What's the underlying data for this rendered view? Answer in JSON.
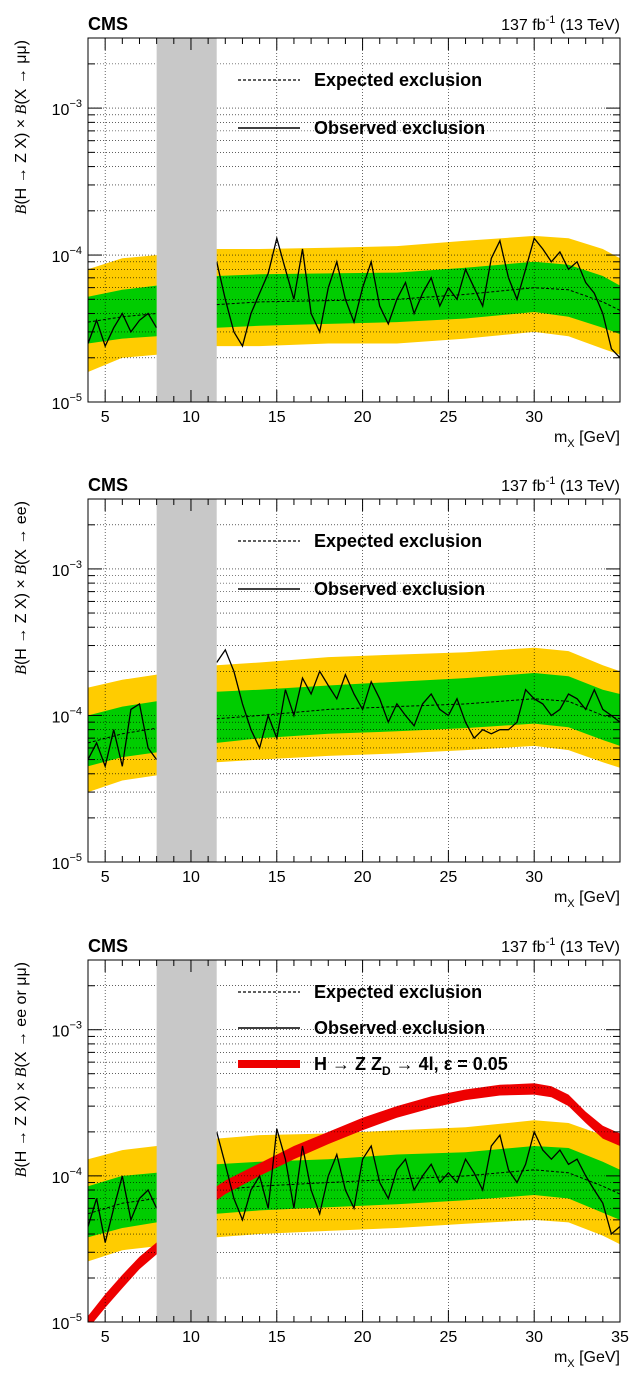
{
  "chart_data": [
    {
      "type": "line",
      "header": {
        "experiment": "CMS",
        "lumi": "137",
        "lumi_unit": "fb",
        "lumi_exp": "-1",
        "energy": "(13 TeV)"
      },
      "xlabel": {
        "main": "m",
        "sub": "X",
        "unit": "[GeV]"
      },
      "ylabel": {
        "p1": "B",
        "p2": "(H → Z X) × ",
        "p3": "B",
        "p4": "(X → μμ)"
      },
      "xlim": [
        4,
        35
      ],
      "ylim": [
        1e-05,
        0.003
      ],
      "log_y": true,
      "grid": true,
      "excluded_region_x": [
        8,
        11.5
      ],
      "xticks": [
        5,
        10,
        15,
        20,
        25,
        30
      ],
      "yticks": [
        {
          "value": 1e-05,
          "base": "10",
          "exp": "−5"
        },
        {
          "value": 0.0001,
          "base": "10",
          "exp": "−4"
        },
        {
          "value": 0.001,
          "base": "10",
          "exp": "−3"
        }
      ],
      "legend": {
        "position": "top-right",
        "entries": [
          "Expected exclusion",
          "Observed exclusion"
        ]
      },
      "expected": {
        "x": [
          4,
          6,
          8,
          11.5,
          14,
          18,
          22,
          26,
          30,
          32,
          34,
          35
        ],
        "y": [
          3.5e-05,
          3.8e-05,
          4e-05,
          4.6e-05,
          4.8e-05,
          4.9e-05,
          5e-05,
          5.4e-05,
          6e-05,
          5.8e-05,
          4.8e-05,
          4.2e-05
        ]
      },
      "band_1sigma": {
        "x": [
          4,
          6,
          8,
          11.5,
          14,
          18,
          22,
          26,
          30,
          32,
          34,
          35
        ],
        "low": [
          2.5e-05,
          2.7e-05,
          2.8e-05,
          3.2e-05,
          3.3e-05,
          3.4e-05,
          3.5e-05,
          3.7e-05,
          4.1e-05,
          3.8e-05,
          3.2e-05,
          2.9e-05
        ],
        "high": [
          5.2e-05,
          5.8e-05,
          6.2e-05,
          7.2e-05,
          7.4e-05,
          7.5e-05,
          7.6e-05,
          8.2e-05,
          9e-05,
          8.6e-05,
          7.2e-05,
          6.2e-05
        ]
      },
      "band_2sigma": {
        "x": [
          4,
          6,
          8,
          11.5,
          14,
          18,
          22,
          26,
          30,
          32,
          34,
          35
        ],
        "low": [
          1.6e-05,
          2e-05,
          2.1e-05,
          2.4e-05,
          2.4e-05,
          2.5e-05,
          2.5e-05,
          2.7e-05,
          3e-05,
          2.8e-05,
          2.3e-05,
          2.1e-05
        ],
        "high": [
          8e-05,
          9.5e-05,
          0.0001,
          0.00011,
          0.00011,
          0.000112,
          0.000115,
          0.000125,
          0.000135,
          0.00013,
          0.00011,
          9.5e-05
        ]
      },
      "observed": {
        "x": [
          4,
          4.5,
          5,
          5.5,
          6,
          6.5,
          7,
          7.5,
          8,
          11.5,
          12,
          12.5,
          13,
          13.5,
          14,
          14.5,
          15,
          15.5,
          16,
          16.5,
          17,
          17.5,
          18,
          18.5,
          19,
          19.5,
          20,
          20.5,
          21,
          21.5,
          22,
          22.5,
          23,
          23.5,
          24,
          24.5,
          25,
          25.5,
          26,
          26.5,
          27,
          27.5,
          28,
          28.5,
          29,
          29.5,
          30,
          30.5,
          31,
          31.5,
          32,
          32.5,
          33,
          33.5,
          34,
          34.5,
          35
        ],
        "y": [
          2.5e-05,
          3.6e-05,
          2.4e-05,
          3.2e-05,
          4e-05,
          3e-05,
          3.6e-05,
          4e-05,
          3.2e-05,
          9e-05,
          5e-05,
          3e-05,
          2.4e-05,
          4e-05,
          5.5e-05,
          7.5e-05,
          0.00013,
          8e-05,
          5e-05,
          0.00011,
          4e-05,
          3e-05,
          6e-05,
          9e-05,
          5e-05,
          3.5e-05,
          6e-05,
          9e-05,
          4.5e-05,
          3.4e-05,
          5e-05,
          6.5e-05,
          4e-05,
          5.5e-05,
          7e-05,
          4.5e-05,
          6e-05,
          5e-05,
          8e-05,
          6e-05,
          4.5e-05,
          9.5e-05,
          0.000125,
          7e-05,
          5e-05,
          8e-05,
          0.00013,
          0.00011,
          9e-05,
          0.000105,
          8e-05,
          9e-05,
          6.5e-05,
          5.5e-05,
          4e-05,
          2.3e-05,
          2e-05
        ]
      }
    },
    {
      "type": "line",
      "header": {
        "experiment": "CMS",
        "lumi": "137",
        "lumi_unit": "fb",
        "lumi_exp": "-1",
        "energy": "(13 TeV)"
      },
      "xlabel": {
        "main": "m",
        "sub": "X",
        "unit": "[GeV]"
      },
      "ylabel": {
        "p1": "B",
        "p2": "(H → Z X) ×  ",
        "p3": "B",
        "p4": "(X → ee)"
      },
      "xlim": [
        4,
        35
      ],
      "ylim": [
        1e-05,
        0.003
      ],
      "log_y": true,
      "grid": true,
      "excluded_region_x": [
        8,
        11.5
      ],
      "xticks": [
        5,
        10,
        15,
        20,
        25,
        30
      ],
      "yticks": [
        {
          "value": 1e-05,
          "base": "10",
          "exp": "−5"
        },
        {
          "value": 0.0001,
          "base": "10",
          "exp": "−4"
        },
        {
          "value": 0.001,
          "base": "10",
          "exp": "−3"
        }
      ],
      "legend": {
        "position": "top-right",
        "entries": [
          "Expected exclusion",
          "Observed exclusion"
        ]
      },
      "expected": {
        "x": [
          4,
          6,
          8,
          11.5,
          14,
          18,
          22,
          26,
          30,
          32,
          34,
          35
        ],
        "y": [
          6.5e-05,
          7.5e-05,
          8.2e-05,
          9.5e-05,
          0.0001,
          0.00011,
          0.000115,
          0.00012,
          0.00013,
          0.000125,
          0.0001,
          9.5e-05
        ]
      },
      "band_1sigma": {
        "x": [
          4,
          6,
          8,
          11.5,
          14,
          18,
          22,
          26,
          30,
          32,
          34,
          35
        ],
        "low": [
          4.5e-05,
          5.2e-05,
          5.6e-05,
          6.5e-05,
          7e-05,
          7.5e-05,
          7.8e-05,
          8.2e-05,
          8.8e-05,
          8.3e-05,
          6.8e-05,
          6.2e-05
        ],
        "high": [
          0.0001,
          0.000115,
          0.000125,
          0.000145,
          0.00015,
          0.00016,
          0.00017,
          0.00018,
          0.000195,
          0.000185,
          0.00015,
          0.00014
        ]
      },
      "band_2sigma": {
        "x": [
          4,
          6,
          8,
          11.5,
          14,
          18,
          22,
          26,
          30,
          32,
          34,
          35
        ],
        "low": [
          3e-05,
          3.6e-05,
          3.9e-05,
          4.8e-05,
          5e-05,
          5.3e-05,
          5.5e-05,
          5.8e-05,
          6.2e-05,
          5.8e-05,
          4.8e-05,
          4.4e-05
        ],
        "high": [
          0.000155,
          0.000175,
          0.00019,
          0.00022,
          0.00023,
          0.00025,
          0.00026,
          0.00027,
          0.00029,
          0.000275,
          0.00022,
          0.0002
        ]
      },
      "observed": {
        "x": [
          4,
          4.5,
          5,
          5.5,
          6,
          6.5,
          7,
          7.5,
          8,
          11.5,
          12,
          12.5,
          13,
          13.5,
          14,
          14.5,
          15,
          15.5,
          16,
          16.5,
          17,
          17.5,
          18,
          18.5,
          19,
          19.5,
          20,
          20.5,
          21,
          21.5,
          22,
          22.5,
          23,
          23.5,
          24,
          24.5,
          25,
          25.5,
          26,
          26.5,
          27,
          27.5,
          28,
          28.5,
          29,
          29.5,
          30,
          30.5,
          31,
          31.5,
          32,
          32.5,
          33,
          33.5,
          34,
          34.5,
          35
        ],
        "y": [
          5e-05,
          6.5e-05,
          4.5e-05,
          8e-05,
          4.5e-05,
          0.00011,
          0.00012,
          6e-05,
          5e-05,
          0.00023,
          0.00028,
          0.0002,
          0.00012,
          8e-05,
          6e-05,
          0.0001,
          7e-05,
          0.00015,
          0.0001,
          0.00018,
          0.00014,
          0.0002,
          0.00016,
          0.00013,
          0.00019,
          0.00014,
          0.00011,
          0.00017,
          0.00013,
          9e-05,
          0.00012,
          0.0001,
          8.5e-05,
          0.00012,
          0.00014,
          0.00011,
          0.0001,
          0.00013,
          9e-05,
          7e-05,
          8e-05,
          7.5e-05,
          8e-05,
          8e-05,
          9e-05,
          0.00015,
          0.00013,
          0.00012,
          0.0001,
          0.00011,
          0.00014,
          0.00013,
          0.00011,
          0.00015,
          0.00011,
          0.0001,
          9e-05
        ]
      }
    },
    {
      "type": "line",
      "header": {
        "experiment": "CMS",
        "lumi": "137",
        "lumi_unit": "fb",
        "lumi_exp": "-1",
        "energy": "(13 TeV)"
      },
      "xlabel": {
        "main": "m",
        "sub": "X",
        "unit": "[GeV]"
      },
      "ylabel": {
        "p1": "B",
        "p2": "(H → Z X) × ",
        "p3": "B",
        "p4": "(X → ee or μμ)"
      },
      "xlim": [
        4,
        35
      ],
      "ylim": [
        1e-05,
        0.003
      ],
      "log_y": true,
      "grid": true,
      "excluded_region_x": [
        8,
        11.5
      ],
      "xticks": [
        5,
        10,
        15,
        20,
        25,
        30,
        35
      ],
      "yticks": [
        {
          "value": 1e-05,
          "base": "10",
          "exp": "−5"
        },
        {
          "value": 0.0001,
          "base": "10",
          "exp": "−4"
        },
        {
          "value": 0.001,
          "base": "10",
          "exp": "−3"
        }
      ],
      "legend": {
        "position": "top-right",
        "entries": [
          "Expected exclusion",
          "Observed exclusion",
          "H → Z Z",
          "D",
          " → 4l, ε = 0.05"
        ]
      },
      "expected": {
        "x": [
          4,
          6,
          8,
          11.5,
          14,
          18,
          22,
          26,
          30,
          32,
          34,
          35
        ],
        "y": [
          5.5e-05,
          6.5e-05,
          7e-05,
          8e-05,
          8.5e-05,
          9e-05,
          9.5e-05,
          0.0001,
          0.00011,
          0.000105,
          8.5e-05,
          7.5e-05
        ]
      },
      "band_1sigma": {
        "x": [
          4,
          6,
          8,
          11.5,
          14,
          18,
          22,
          26,
          30,
          32,
          34,
          35
        ],
        "low": [
          3.8e-05,
          4.4e-05,
          4.8e-05,
          5.5e-05,
          5.8e-05,
          6.1e-05,
          6.4e-05,
          6.8e-05,
          7.4e-05,
          7e-05,
          5.6e-05,
          5e-05
        ],
        "high": [
          8.5e-05,
          0.0001,
          0.000105,
          0.00012,
          0.000125,
          0.00013,
          0.00014,
          0.000145,
          0.00016,
          0.000155,
          0.000125,
          0.00011
        ]
      },
      "band_2sigma": {
        "x": [
          4,
          6,
          8,
          11.5,
          14,
          18,
          22,
          26,
          30,
          32,
          34,
          35
        ],
        "low": [
          2.6e-05,
          3.1e-05,
          3.3e-05,
          3.8e-05,
          4e-05,
          4.2e-05,
          4.4e-05,
          4.7e-05,
          5e-05,
          4.8e-05,
          3.9e-05,
          3.4e-05
        ],
        "high": [
          0.00013,
          0.00015,
          0.00016,
          0.00018,
          0.00019,
          0.000195,
          0.000205,
          0.000215,
          0.00024,
          0.00023,
          0.00019,
          0.00017
        ]
      },
      "observed": {
        "x": [
          4,
          4.5,
          5,
          5.5,
          6,
          6.5,
          7,
          7.5,
          8,
          11.5,
          12,
          12.5,
          13,
          13.5,
          14,
          14.5,
          15,
          15.5,
          16,
          16.5,
          17,
          17.5,
          18,
          18.5,
          19,
          19.5,
          20,
          20.5,
          21,
          21.5,
          22,
          22.5,
          23,
          23.5,
          24,
          24.5,
          25,
          25.5,
          26,
          26.5,
          27,
          27.5,
          28,
          28.5,
          29,
          29.5,
          30,
          30.5,
          31,
          31.5,
          32,
          32.5,
          33,
          33.5,
          34,
          34.5,
          35
        ],
        "y": [
          4.5e-05,
          7e-05,
          3.5e-05,
          6e-05,
          0.0001,
          5e-05,
          7e-05,
          8e-05,
          6e-05,
          0.0002,
          0.00012,
          7e-05,
          5e-05,
          8e-05,
          0.0001,
          6e-05,
          0.00021,
          0.00013,
          6e-05,
          0.00016,
          8e-05,
          5.5e-05,
          0.0001,
          0.00014,
          8e-05,
          6e-05,
          0.00013,
          0.00016,
          9e-05,
          7e-05,
          0.00011,
          0.00013,
          8e-05,
          0.0001,
          0.00012,
          9e-05,
          0.000105,
          9e-05,
          0.00013,
          0.000105,
          8e-05,
          0.00016,
          0.00019,
          0.00011,
          9e-05,
          0.00012,
          0.0002,
          0.00015,
          0.00013,
          0.00015,
          0.00012,
          0.00013,
          0.0001,
          8e-05,
          6.5e-05,
          4e-05,
          4.5e-05
        ]
      },
      "signal_band": {
        "x": [
          4,
          5,
          6,
          7,
          8,
          11.5,
          12,
          14,
          16,
          18,
          20,
          22,
          24,
          26,
          28,
          30,
          31,
          32,
          33,
          34,
          35
        ],
        "low": [
          9e-06,
          1.25e-05,
          1.7e-05,
          2.3e-05,
          2.9e-05,
          6.8e-05,
          7.5e-05,
          0.0001,
          0.00013,
          0.000165,
          0.000205,
          0.00025,
          0.00029,
          0.00033,
          0.000355,
          0.00036,
          0.000345,
          0.0003,
          0.00023,
          0.00018,
          0.00016
        ],
        "high": [
          1.1e-05,
          1.55e-05,
          2.1e-05,
          2.8e-05,
          3.5e-05,
          8.5e-05,
          9.3e-05,
          0.000122,
          0.00016,
          0.0002,
          0.00025,
          0.0003,
          0.00035,
          0.00039,
          0.00042,
          0.00043,
          0.00041,
          0.00036,
          0.000275,
          0.00022,
          0.000195
        ]
      }
    }
  ],
  "colors": {
    "band_2sigma": "#FFCC00",
    "band_1sigma": "#00CC00",
    "excluded": "#C8C8C8",
    "signal": "#EE0000",
    "line": "#000000"
  }
}
